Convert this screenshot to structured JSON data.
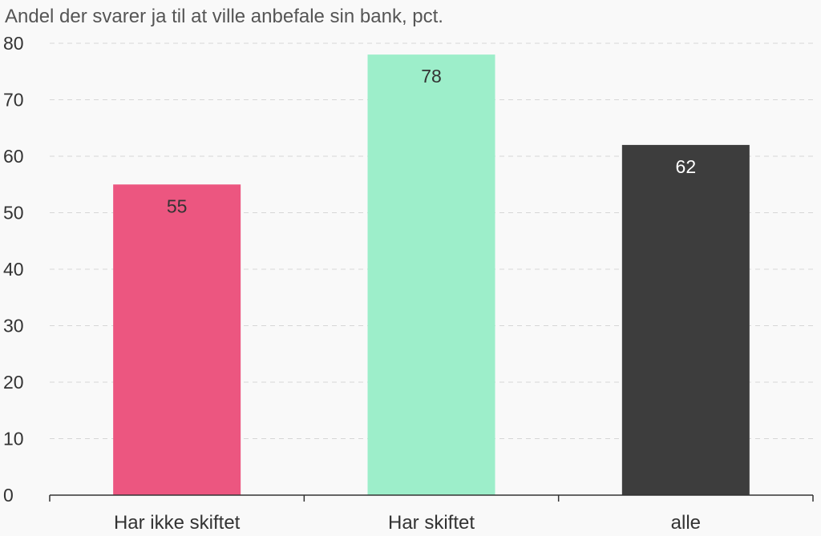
{
  "chart_data": {
    "type": "bar",
    "title": "Andel der svarer ja til at ville anbefale sin bank, pct.",
    "xlabel": "",
    "ylabel": "",
    "categories": [
      "Har ikke skiftet",
      "Har skiftet",
      "alle"
    ],
    "values": [
      55,
      78,
      62
    ],
    "data_labels": [
      "55",
      "78",
      "62"
    ],
    "bar_colors": [
      "#ec5680",
      "#9deeca",
      "#3d3d3d"
    ],
    "label_colors": [
      "#333333",
      "#333333",
      "#ffffff"
    ],
    "ylim": [
      0,
      80
    ],
    "yticks": [
      0,
      10,
      20,
      30,
      40,
      50,
      60,
      70,
      80
    ],
    "ytick_labels": [
      "0",
      "10",
      "20",
      "30",
      "40",
      "50",
      "60",
      "70",
      "80"
    ],
    "grid": true
  }
}
